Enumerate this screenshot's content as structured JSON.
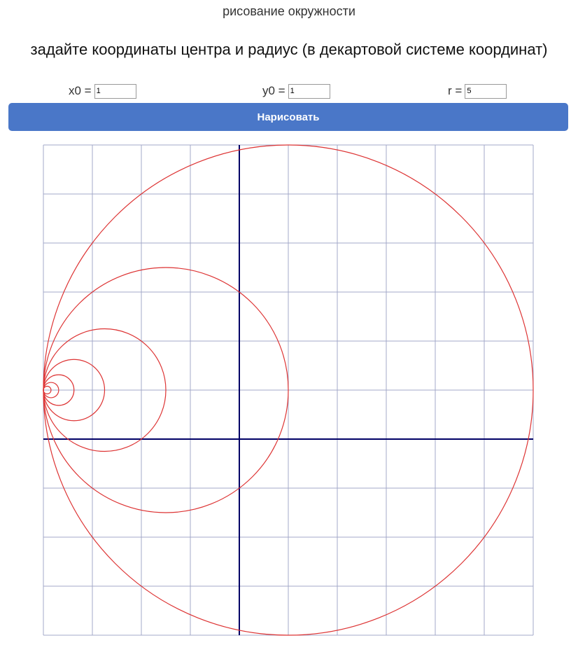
{
  "header": {
    "title": "рисование окружности"
  },
  "main": {
    "heading": "задайте координаты центра и радиус (в декартовой системе координат)"
  },
  "form": {
    "x0": {
      "label": "x0 =",
      "value": "1"
    },
    "y0": {
      "label": "y0 =",
      "value": "1"
    },
    "r": {
      "label": "r =",
      "value": "5"
    },
    "draw_button_label": "Нарисовать"
  },
  "colors": {
    "button": "#4a77c8",
    "grid": "#a3a8c9",
    "axes": "#000066",
    "circle": "#dd3333"
  },
  "chart_data": {
    "type": "line",
    "xlim": [
      -4,
      6
    ],
    "ylim": [
      -4,
      6
    ],
    "grid": true,
    "grid_step": 1,
    "axes_origin": [
      0,
      0
    ],
    "circles": [
      {
        "cx": 1,
        "cy": 1,
        "r": 5
      },
      {
        "cx": -1.5,
        "cy": 1,
        "r": 2.5
      },
      {
        "cx": -2.75,
        "cy": 1,
        "r": 1.25
      },
      {
        "cx": -3.375,
        "cy": 1,
        "r": 0.625
      },
      {
        "cx": -3.6875,
        "cy": 1,
        "r": 0.3125
      },
      {
        "cx": -3.84375,
        "cy": 1,
        "r": 0.15625
      },
      {
        "cx": -3.921875,
        "cy": 1,
        "r": 0.078125
      }
    ]
  }
}
